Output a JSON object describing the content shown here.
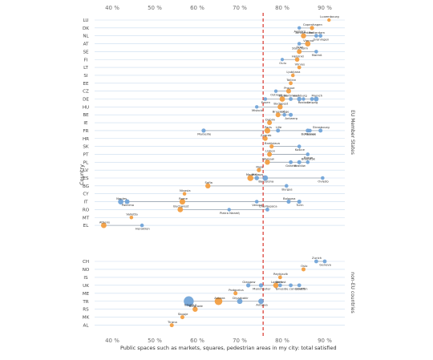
{
  "chart_data": {
    "type": "scatter",
    "xlabel": "Public spaces such as markets, squares, pedestrian areas in my city: total satisfied",
    "ylabel": "Country",
    "x_tick_labels": [
      "40 %",
      "50 %",
      "60 %",
      "70 %",
      "80 %",
      "90 %"
    ],
    "x_ticks": [
      40,
      50,
      60,
      70,
      80,
      90
    ],
    "xlim": [
      37,
      93
    ],
    "reference_line": 75.5,
    "group_labels": [
      "EU Member States",
      "non-EU countries"
    ],
    "colors": {
      "capital": "#f39c3d",
      "other": "#6fa3d8",
      "reference": "#d9342b",
      "grid": "#c9dcef",
      "range": "#9aa5b1"
    },
    "countries": [
      {
        "code": "LU",
        "group": "eu",
        "cities": [
          {
            "name": "Luxembourg",
            "x": 91,
            "size": 2.2,
            "capital": true
          }
        ]
      },
      {
        "code": "DK",
        "group": "eu",
        "cities": [
          {
            "name": "Copenhagen",
            "x": 87,
            "size": 2.6,
            "capital": true
          },
          {
            "name": "Aalborg",
            "x": 84,
            "size": 2.2,
            "capital": false
          }
        ]
      },
      {
        "code": "NL",
        "group": "eu",
        "cities": [
          {
            "name": "Amsterdam",
            "x": 85,
            "size": 3.2,
            "capital": true
          },
          {
            "name": "Groningen",
            "x": 89,
            "size": 2.4,
            "capital": false
          },
          {
            "name": "Rotterdam",
            "x": 88,
            "size": 2.4,
            "capital": false
          }
        ]
      },
      {
        "code": "AT",
        "group": "eu",
        "cities": [
          {
            "name": "Vienna",
            "x": 86,
            "size": 3.4,
            "capital": true
          },
          {
            "name": "Graz",
            "x": 84,
            "size": 2.3,
            "capital": false
          }
        ]
      },
      {
        "code": "SE",
        "group": "eu",
        "cities": [
          {
            "name": "Stockholm",
            "x": 84,
            "size": 3.0,
            "capital": true
          },
          {
            "name": "Malmö",
            "x": 88,
            "size": 2.3,
            "capital": false
          }
        ]
      },
      {
        "code": "FI",
        "group": "eu",
        "cities": [
          {
            "name": "Helsinki",
            "x": 83.5,
            "size": 2.8,
            "capital": true
          },
          {
            "name": "Oulu",
            "x": 80,
            "size": 2.1,
            "capital": false
          }
        ]
      },
      {
        "code": "LT",
        "group": "eu",
        "cities": [
          {
            "name": "Vilnius",
            "x": 84,
            "size": 2.4,
            "capital": true
          }
        ]
      },
      {
        "code": "SI",
        "group": "eu",
        "cities": [
          {
            "name": "Ljubljana",
            "x": 82.5,
            "size": 2.3,
            "capital": true
          }
        ]
      },
      {
        "code": "EE",
        "group": "eu",
        "cities": [
          {
            "name": "Tallinn",
            "x": 82,
            "size": 2.4,
            "capital": true
          }
        ]
      },
      {
        "code": "CZ",
        "group": "eu",
        "cities": [
          {
            "name": "Prague",
            "x": 81.5,
            "size": 3.0,
            "capital": true
          },
          {
            "name": "Ostrava",
            "x": 78.5,
            "size": 2.2,
            "capital": false
          }
        ]
      },
      {
        "code": "DE",
        "group": "eu",
        "cities": [
          {
            "name": "Berlin",
            "x": 80,
            "size": 3.4,
            "capital": true
          },
          {
            "name": "Essen",
            "x": 76,
            "size": 2.3,
            "capital": false
          },
          {
            "name": "Dortmund",
            "x": 82,
            "size": 2.4,
            "capital": false
          },
          {
            "name": "Leipzig",
            "x": 87,
            "size": 2.4,
            "capital": false
          },
          {
            "name": "Hamburg",
            "x": 84,
            "size": 2.8,
            "capital": false
          },
          {
            "name": "Rostock",
            "x": 85,
            "size": 2.2,
            "capital": false
          },
          {
            "name": "Munich",
            "x": 88,
            "size": 3.0,
            "capital": false
          }
        ]
      },
      {
        "code": "HU",
        "group": "eu",
        "cities": [
          {
            "name": "Budapest",
            "x": 79.5,
            "size": 3.2,
            "capital": true
          },
          {
            "name": "Miskolc",
            "x": 74,
            "size": 2.2,
            "capital": false
          }
        ]
      },
      {
        "code": "BE",
        "group": "eu",
        "cities": [
          {
            "name": "Brussels",
            "x": 79,
            "size": 3.0,
            "capital": true
          },
          {
            "name": "Antwerp",
            "x": 82,
            "size": 2.5,
            "capital": false
          },
          {
            "name": "Liège",
            "x": 80.5,
            "size": 2.3,
            "capital": false
          }
        ]
      },
      {
        "code": "IE",
        "group": "eu",
        "cities": [
          {
            "name": "Dublin",
            "x": 77,
            "size": 3.0,
            "capital": true
          }
        ]
      },
      {
        "code": "FR",
        "group": "eu",
        "cities": [
          {
            "name": "Paris",
            "x": 76.5,
            "size": 3.6,
            "capital": true
          },
          {
            "name": "Marseille",
            "x": 61.5,
            "size": 2.6,
            "capital": false
          },
          {
            "name": "Lille",
            "x": 79,
            "size": 2.5,
            "capital": false
          },
          {
            "name": "Bordeaux",
            "x": 86,
            "size": 2.5,
            "capital": false
          },
          {
            "name": "Strasbourg",
            "x": 89,
            "size": 2.5,
            "capital": false
          },
          {
            "name": "Rennes",
            "x": 86.5,
            "size": 2.3,
            "capital": false
          }
        ]
      },
      {
        "code": "HR",
        "group": "eu",
        "cities": [
          {
            "name": "Zagreb",
            "x": 76,
            "size": 3.0,
            "capital": true
          }
        ]
      },
      {
        "code": "SK",
        "group": "eu",
        "cities": [
          {
            "name": "Bratislava",
            "x": 77.5,
            "size": 2.6,
            "capital": true
          },
          {
            "name": "Košice",
            "x": 84,
            "size": 2.3,
            "capital": false
          }
        ]
      },
      {
        "code": "PT",
        "group": "eu",
        "cities": [
          {
            "name": "Lisbon",
            "x": 77,
            "size": 3.0,
            "capital": true
          },
          {
            "name": "Braga",
            "x": 86,
            "size": 2.3,
            "capital": false
          }
        ]
      },
      {
        "code": "PL",
        "group": "eu",
        "cities": [
          {
            "name": "Warsaw",
            "x": 76.5,
            "size": 3.2,
            "capital": true
          },
          {
            "name": "Gdańsk",
            "x": 82,
            "size": 2.4,
            "capital": false
          },
          {
            "name": "Białystok",
            "x": 86,
            "size": 2.3,
            "capital": false
          },
          {
            "name": "Kraków",
            "x": 84,
            "size": 2.5,
            "capital": false
          }
        ]
      },
      {
        "code": "LV",
        "group": "eu",
        "cities": [
          {
            "name": "Riga",
            "x": 74.5,
            "size": 2.6,
            "capital": true
          }
        ]
      },
      {
        "code": "ES",
        "group": "eu",
        "cities": [
          {
            "name": "Madrid",
            "x": 72.5,
            "size": 3.8,
            "capital": true
          },
          {
            "name": "Barcelona",
            "x": 76,
            "size": 3.4,
            "capital": false
          },
          {
            "name": "Málaga",
            "x": 74,
            "size": 2.8,
            "capital": false
          },
          {
            "name": "Oviedo",
            "x": 89.5,
            "size": 2.3,
            "capital": false
          }
        ]
      },
      {
        "code": "BG",
        "group": "eu",
        "cities": [
          {
            "name": "Sofia",
            "x": 62.5,
            "size": 3.2,
            "capital": true
          },
          {
            "name": "Burgas",
            "x": 81,
            "size": 2.3,
            "capital": false
          }
        ]
      },
      {
        "code": "CY",
        "group": "eu",
        "cities": [
          {
            "name": "Nicosia",
            "x": 57,
            "size": 2.3,
            "capital": true
          }
        ]
      },
      {
        "code": "IT",
        "group": "eu",
        "cities": [
          {
            "name": "Rome",
            "x": 56.5,
            "size": 3.6,
            "capital": true
          },
          {
            "name": "Palermo",
            "x": 43.5,
            "size": 3.0,
            "capital": false
          },
          {
            "name": "Naples",
            "x": 42,
            "size": 3.4,
            "capital": false
          },
          {
            "name": "Verona",
            "x": 74,
            "size": 2.3,
            "capital": false
          },
          {
            "name": "Bologna",
            "x": 81.5,
            "size": 2.5,
            "capital": false
          },
          {
            "name": "Turin",
            "x": 84,
            "size": 2.6,
            "capital": false
          }
        ]
      },
      {
        "code": "RO",
        "group": "eu",
        "cities": [
          {
            "name": "Bucharest",
            "x": 56,
            "size": 3.4,
            "capital": true
          },
          {
            "name": "Piatra Neamţ",
            "x": 67.5,
            "size": 2.2,
            "capital": false
          },
          {
            "name": "Cluj-Napoca",
            "x": 76.5,
            "size": 2.4,
            "capital": false
          }
        ]
      },
      {
        "code": "MT",
        "group": "eu",
        "cities": [
          {
            "name": "Valletta",
            "x": 44.5,
            "size": 2.3,
            "capital": true
          }
        ]
      },
      {
        "code": "EL",
        "group": "eu",
        "cities": [
          {
            "name": "Athens",
            "x": 38,
            "size": 3.4,
            "capital": true
          },
          {
            "name": "Heraklion",
            "x": 47,
            "size": 2.3,
            "capital": false
          }
        ]
      },
      {
        "code": "CH",
        "group": "noneu",
        "cities": [
          {
            "name": "Zurich",
            "x": 88,
            "size": 2.4,
            "capital": false
          },
          {
            "name": "Geneva",
            "x": 90,
            "size": 2.4,
            "capital": false
          }
        ]
      },
      {
        "code": "NO",
        "group": "noneu",
        "cities": [
          {
            "name": "Oslo",
            "x": 85,
            "size": 2.5,
            "capital": true
          }
        ]
      },
      {
        "code": "IS",
        "group": "noneu",
        "cities": [
          {
            "name": "Reykjavík",
            "x": 79.5,
            "size": 2.4,
            "capital": true
          }
        ]
      },
      {
        "code": "UK",
        "group": "noneu",
        "cities": [
          {
            "name": "London",
            "x": 78.5,
            "size": 3.4,
            "capital": true
          },
          {
            "name": "Manchester",
            "x": 75,
            "size": 2.6,
            "capital": false
          },
          {
            "name": "Belfast",
            "x": 79.5,
            "size": 2.4,
            "capital": false
          },
          {
            "name": "Cardiff",
            "x": 84,
            "size": 2.4,
            "capital": false
          },
          {
            "name": "Glasgow",
            "x": 72,
            "size": 2.6,
            "capital": false
          },
          {
            "name": "Tyneside conurbation",
            "x": 82,
            "size": 2.4,
            "capital": false
          }
        ]
      },
      {
        "code": "ME",
        "group": "noneu",
        "cities": [
          {
            "name": "Podgorica",
            "x": 69,
            "size": 2.5,
            "capital": true
          }
        ]
      },
      {
        "code": "TR",
        "group": "noneu",
        "cities": [
          {
            "name": "Ankara",
            "x": 65,
            "size": 4.8,
            "capital": true
          },
          {
            "name": "Istanbul",
            "x": 58,
            "size": 6.2,
            "capital": false
          },
          {
            "name": "Diyarbakir",
            "x": 70,
            "size": 3.4,
            "capital": false
          },
          {
            "name": "Antalya",
            "x": 75,
            "size": 3.4,
            "capital": false
          }
        ]
      },
      {
        "code": "RS",
        "group": "noneu",
        "cities": [
          {
            "name": "Belgrade",
            "x": 59.5,
            "size": 3.2,
            "capital": true
          }
        ]
      },
      {
        "code": "MK",
        "group": "noneu",
        "cities": [
          {
            "name": "Skopje",
            "x": 56.5,
            "size": 2.5,
            "capital": true
          }
        ]
      },
      {
        "code": "AL",
        "group": "noneu",
        "cities": [
          {
            "name": "Tirana",
            "x": 54,
            "size": 2.5,
            "capital": true
          }
        ]
      }
    ]
  }
}
